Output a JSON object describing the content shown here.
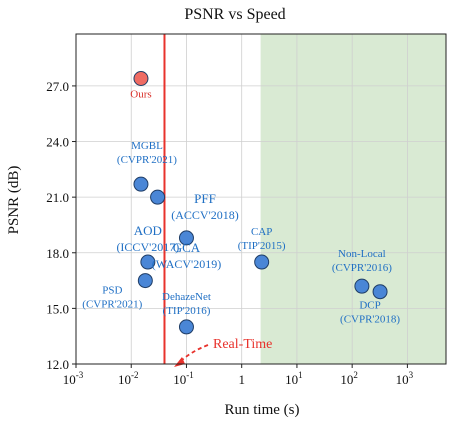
{
  "chart_data": {
    "type": "scatter",
    "title": "PSNR vs Speed",
    "xlabel": "Run time (s)",
    "ylabel": "PSNR (dB)",
    "xscale": "log",
    "xlim": [
      0.001,
      5000
    ],
    "ylim": [
      12.0,
      29.8
    ],
    "grid": true,
    "yticks": [
      {
        "value": 12.0,
        "label": "12.0"
      },
      {
        "value": 15.0,
        "label": "15.0"
      },
      {
        "value": 18.0,
        "label": "18.0"
      },
      {
        "value": 21.0,
        "label": "21.0"
      },
      {
        "value": 24.0,
        "label": "24.0"
      },
      {
        "value": 27.0,
        "label": "27.0"
      }
    ],
    "xticks": [
      {
        "value": 0.001,
        "base": "10",
        "exp": "-3",
        "plain": ""
      },
      {
        "value": 0.01,
        "base": "10",
        "exp": "-2",
        "plain": ""
      },
      {
        "value": 0.1,
        "base": "10",
        "exp": "-1",
        "plain": ""
      },
      {
        "value": 1,
        "base": "",
        "exp": "",
        "plain": "1"
      },
      {
        "value": 10,
        "base": "10",
        "exp": "1",
        "plain": ""
      },
      {
        "value": 100,
        "base": "10",
        "exp": "2",
        "plain": ""
      },
      {
        "value": 1000,
        "base": "10",
        "exp": "3",
        "plain": ""
      }
    ],
    "shaded_region": {
      "x_start": 2.2,
      "color": "#d9ead3"
    },
    "realtime_line": {
      "x": 0.04,
      "label": "Real-Time",
      "color": "#e8322c"
    },
    "points": [
      {
        "name": "Ours",
        "lines": [
          "Ours"
        ],
        "x": 0.015,
        "y": 27.4,
        "color": "#ef6b63",
        "label_color": "#d9302a"
      },
      {
        "name": "MGBL",
        "lines": [
          "MGBL",
          "(CVPR'2021)"
        ],
        "x": 0.015,
        "y": 21.7,
        "color": "#4a86d6",
        "label_color": "#1f6fc4"
      },
      {
        "name": "PFF",
        "lines": [
          "PFF",
          "(ACCV'2018)"
        ],
        "x": 0.03,
        "y": 21.0,
        "color": "#4a86d6",
        "label_color": "#1f6fc4"
      },
      {
        "name": "AOD",
        "lines": [
          "AOD",
          "(ICCV'2017)"
        ],
        "x": 0.02,
        "y": 17.5,
        "color": "#4a86d6",
        "label_color": "#1f6fc4"
      },
      {
        "name": "GCA",
        "lines": [
          "GCA",
          "(WACV'2019)"
        ],
        "x": 0.1,
        "y": 18.8,
        "color": "#4a86d6",
        "label_color": "#1f6fc4"
      },
      {
        "name": "PSD",
        "lines": [
          "PSD",
          "(CVPR'2021)"
        ],
        "x": 0.018,
        "y": 16.5,
        "color": "#4a86d6",
        "label_color": "#1f6fc4"
      },
      {
        "name": "DehazeNet",
        "lines": [
          "DehazeNet",
          "(TIP'2016)"
        ],
        "x": 0.1,
        "y": 14.0,
        "color": "#4a86d6",
        "label_color": "#1f6fc4"
      },
      {
        "name": "CAP",
        "lines": [
          "CAP",
          "(TIP'2015)"
        ],
        "x": 2.3,
        "y": 17.5,
        "color": "#4a86d6",
        "label_color": "#1f6fc4"
      },
      {
        "name": "Non-Local",
        "lines": [
          "Non-Local",
          "(CVPR'2016)"
        ],
        "x": 150,
        "y": 16.2,
        "color": "#4a86d6",
        "label_color": "#1f6fc4"
      },
      {
        "name": "DCP",
        "lines": [
          "DCP",
          "(CVPR'2018)"
        ],
        "x": 320,
        "y": 15.9,
        "color": "#4a86d6",
        "label_color": "#1f6fc4"
      }
    ]
  }
}
